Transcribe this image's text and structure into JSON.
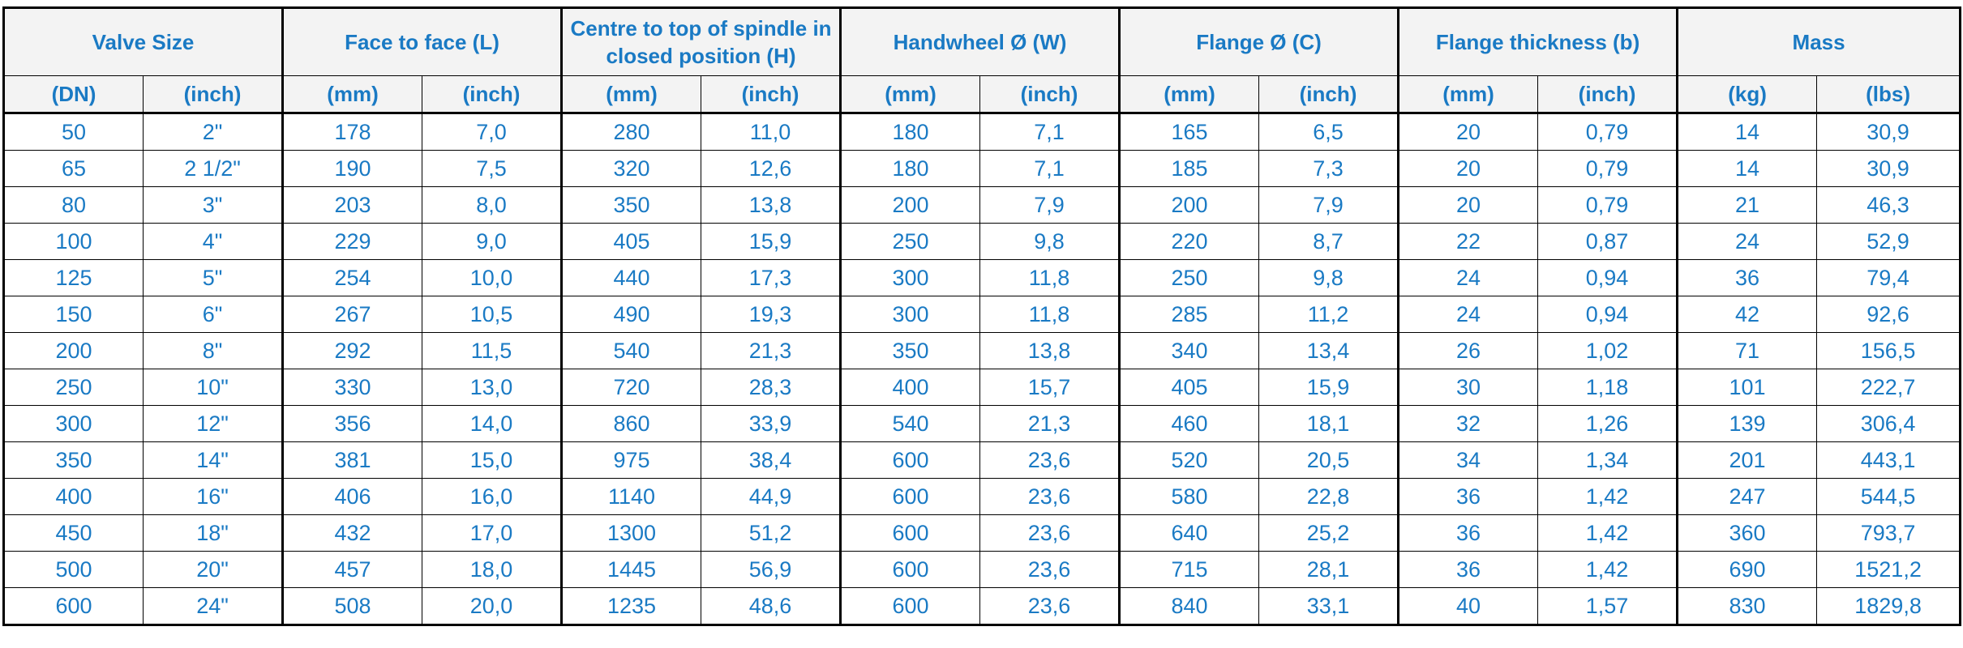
{
  "groups": [
    {
      "label": "Valve Size"
    },
    {
      "label": "Face to face (L)"
    },
    {
      "label": "Centre to top of spindle in closed position (H)"
    },
    {
      "label": "Handwheel Ø (W)"
    },
    {
      "label": "Flange Ø (C)"
    },
    {
      "label": "Flange thickness (b)"
    },
    {
      "label": "Mass"
    }
  ],
  "units": [
    "(DN)",
    "(inch)",
    "(mm)",
    "(inch)",
    "(mm)",
    "(inch)",
    "(mm)",
    "(inch)",
    "(mm)",
    "(inch)",
    "(mm)",
    "(inch)",
    "(kg)",
    "(lbs)"
  ],
  "rows": [
    [
      "50",
      "2\"",
      "178",
      "7,0",
      "280",
      "11,0",
      "180",
      "7,1",
      "165",
      "6,5",
      "20",
      "0,79",
      "14",
      "30,9"
    ],
    [
      "65",
      "2 1/2\"",
      "190",
      "7,5",
      "320",
      "12,6",
      "180",
      "7,1",
      "185",
      "7,3",
      "20",
      "0,79",
      "14",
      "30,9"
    ],
    [
      "80",
      "3\"",
      "203",
      "8,0",
      "350",
      "13,8",
      "200",
      "7,9",
      "200",
      "7,9",
      "20",
      "0,79",
      "21",
      "46,3"
    ],
    [
      "100",
      "4\"",
      "229",
      "9,0",
      "405",
      "15,9",
      "250",
      "9,8",
      "220",
      "8,7",
      "22",
      "0,87",
      "24",
      "52,9"
    ],
    [
      "125",
      "5\"",
      "254",
      "10,0",
      "440",
      "17,3",
      "300",
      "11,8",
      "250",
      "9,8",
      "24",
      "0,94",
      "36",
      "79,4"
    ],
    [
      "150",
      "6\"",
      "267",
      "10,5",
      "490",
      "19,3",
      "300",
      "11,8",
      "285",
      "11,2",
      "24",
      "0,94",
      "42",
      "92,6"
    ],
    [
      "200",
      "8\"",
      "292",
      "11,5",
      "540",
      "21,3",
      "350",
      "13,8",
      "340",
      "13,4",
      "26",
      "1,02",
      "71",
      "156,5"
    ],
    [
      "250",
      "10\"",
      "330",
      "13,0",
      "720",
      "28,3",
      "400",
      "15,7",
      "405",
      "15,9",
      "30",
      "1,18",
      "101",
      "222,7"
    ],
    [
      "300",
      "12\"",
      "356",
      "14,0",
      "860",
      "33,9",
      "540",
      "21,3",
      "460",
      "18,1",
      "32",
      "1,26",
      "139",
      "306,4"
    ],
    [
      "350",
      "14\"",
      "381",
      "15,0",
      "975",
      "38,4",
      "600",
      "23,6",
      "520",
      "20,5",
      "34",
      "1,34",
      "201",
      "443,1"
    ],
    [
      "400",
      "16\"",
      "406",
      "16,0",
      "1140",
      "44,9",
      "600",
      "23,6",
      "580",
      "22,8",
      "36",
      "1,42",
      "247",
      "544,5"
    ],
    [
      "450",
      "18\"",
      "432",
      "17,0",
      "1300",
      "51,2",
      "600",
      "23,6",
      "640",
      "25,2",
      "36",
      "1,42",
      "360",
      "793,7"
    ],
    [
      "500",
      "20\"",
      "457",
      "18,0",
      "1445",
      "56,9",
      "600",
      "23,6",
      "715",
      "28,1",
      "36",
      "1,42",
      "690",
      "1521,2"
    ],
    [
      "600",
      "24\"",
      "508",
      "20,0",
      "1235",
      "48,6",
      "600",
      "23,6",
      "840",
      "33,1",
      "40",
      "1,57",
      "830",
      "1829,8"
    ]
  ],
  "colors": {
    "text": "#1a7ac4",
    "header_bg": "#f3f3f3",
    "border": "#000000"
  }
}
